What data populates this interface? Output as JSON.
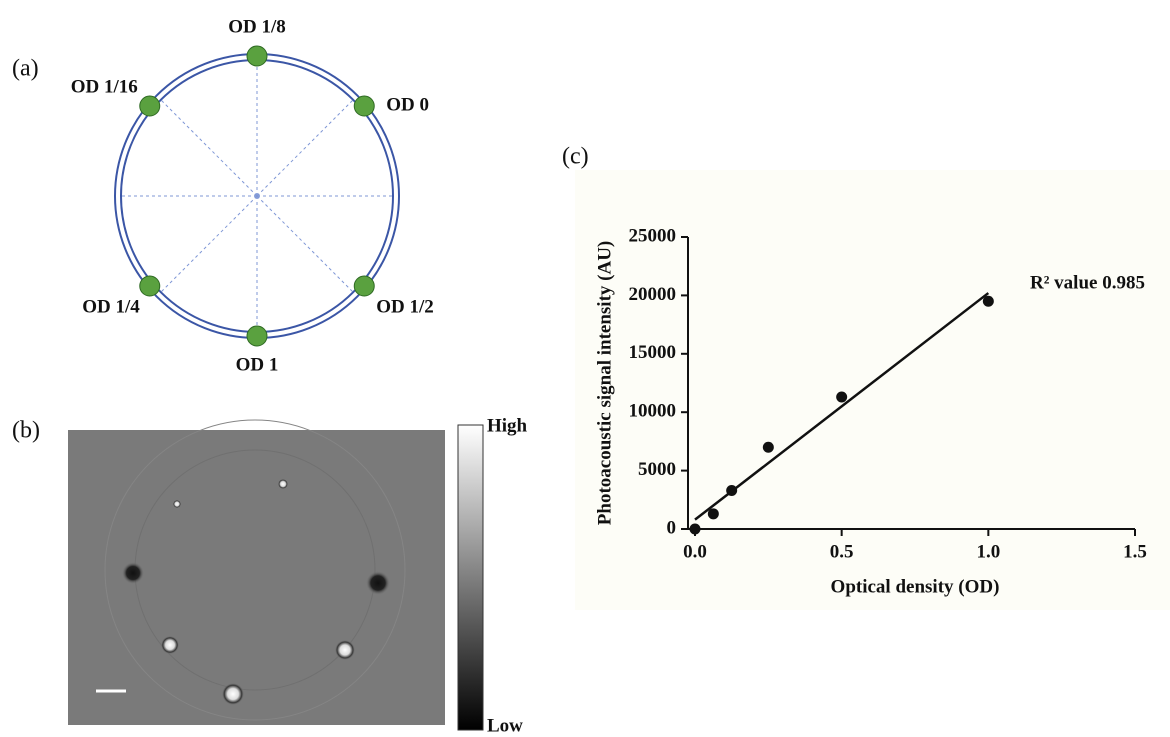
{
  "panel_a": {
    "label": "(a)",
    "dots": [
      {
        "label": "OD 1/8"
      },
      {
        "label": "OD 0"
      },
      {
        "label": "OD 1/2"
      },
      {
        "label": "OD 1"
      },
      {
        "label": "OD 1/4"
      },
      {
        "label": "OD 1/16"
      }
    ]
  },
  "panel_b": {
    "label": "(b)",
    "colorbar_high": "High",
    "colorbar_low": "Low"
  },
  "chart_data": {
    "type": "scatter",
    "panel_label": "(c)",
    "x_label": "Optical density (OD)",
    "y_label": "Photoacoustic signal intensity (AU)",
    "annotation": "R² value 0.985",
    "series": [
      {
        "mode": "markers",
        "color": "#111111",
        "x": [
          0,
          0.0625,
          0.125,
          0.25,
          0.5,
          1.0
        ],
        "values": [
          0,
          1300,
          3300,
          7000,
          11300,
          19500
        ]
      },
      {
        "mode": "line",
        "color": "#111111",
        "x": [
          0,
          1.0
        ],
        "values": [
          800,
          20200
        ]
      }
    ],
    "xlim": [
      0,
      1.5
    ],
    "ylim": [
      0,
      25000
    ],
    "xticks": [
      {
        "value": 0,
        "label": "0.0"
      },
      {
        "value": 0.5,
        "label": "0.5"
      },
      {
        "value": 1.0,
        "label": "1.0"
      },
      {
        "value": 1.5,
        "label": "1.5"
      }
    ],
    "yticks": [
      0,
      5000,
      10000,
      15000,
      20000,
      25000
    ]
  }
}
